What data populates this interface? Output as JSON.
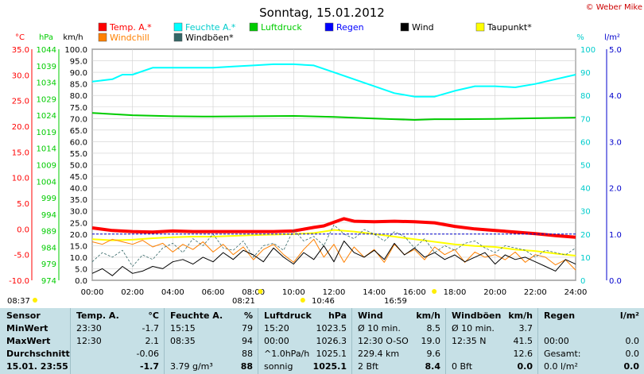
{
  "chart_data": {
    "type": "line",
    "title": "Sonntag, 15.01.2012",
    "copyright": "© Weber Mike",
    "legend": [
      {
        "name": "Temp. A.*",
        "color": "#ff0000"
      },
      {
        "name": "Feuchte A.*",
        "color": "#00ffff"
      },
      {
        "name": "Luftdruck",
        "color": "#00cc00"
      },
      {
        "name": "Regen",
        "color": "#0000ff"
      },
      {
        "name": "Wind",
        "color": "#000000"
      },
      {
        "name": "Taupunkt*",
        "color": "#ffff00"
      },
      {
        "name": "Windchill",
        "color": "#ff8000"
      },
      {
        "name": "Windböen*",
        "color": "#336666"
      }
    ],
    "axes": {
      "temp": {
        "unit": "°C",
        "ticks": [
          "35.0",
          "30.0",
          "25.0",
          "20.0",
          "15.0",
          "10.0",
          "5.0",
          "0.0",
          "-5.0",
          "-10.0"
        ],
        "range": [
          -10,
          35
        ],
        "color": "#ff0000"
      },
      "pressure": {
        "unit": "hPa",
        "ticks": [
          "1044",
          "1039",
          "1034",
          "1029",
          "1024",
          "1019",
          "1014",
          "1009",
          "1004",
          "999",
          "994",
          "989",
          "984",
          "979",
          "974"
        ],
        "range": [
          974,
          1044
        ],
        "color": "#00cc00"
      },
      "wind": {
        "unit": "km/h",
        "ticks": [
          "100.0",
          "95.0",
          "90.0",
          "85.0",
          "80.0",
          "75.0",
          "70.0",
          "65.0",
          "60.0",
          "55.0",
          "50.0",
          "45.0",
          "40.0",
          "35.0",
          "30.0",
          "25.0",
          "20.0",
          "15.0",
          "10.0",
          "5.0",
          "0.0"
        ],
        "range": [
          0,
          100
        ]
      },
      "humidity": {
        "unit": "%",
        "ticks": [
          "100",
          "90",
          "80",
          "70",
          "60",
          "50",
          "40",
          "30",
          "20",
          "10",
          "0"
        ],
        "range": [
          0,
          100
        ],
        "color": "#00cccc"
      },
      "rain": {
        "unit": "l/m²",
        "ticks": [
          "5.0",
          "4.0",
          "3.0",
          "2.0",
          "1.0",
          "0.0"
        ],
        "range": [
          0,
          5
        ],
        "color": "#0000cc"
      },
      "x": {
        "ticks": [
          "00:00",
          "02:00",
          "04:00",
          "06:00",
          "08:00",
          "10:00",
          "12:00",
          "14:00",
          "16:00",
          "18:00",
          "20:00",
          "22:00",
          "24:00"
        ],
        "range": [
          0,
          24
        ]
      }
    },
    "sun_events": [
      {
        "label": "08:37",
        "hour": 8.62
      },
      {
        "label": "08:21",
        "hour": 8.35
      },
      {
        "label": "10:46",
        "hour": 10.77
      },
      {
        "label": "16:59",
        "hour": 16.98
      }
    ],
    "series": [
      {
        "name": "Feuchte A.*",
        "axis": "humidity",
        "color": "#00ffff",
        "x": [
          0,
          1,
          1.5,
          2,
          3,
          4,
          5,
          6,
          7,
          8,
          9,
          10,
          11,
          12,
          13,
          14,
          15,
          16,
          17,
          18,
          19,
          20,
          21,
          22,
          23,
          24
        ],
        "values": [
          86,
          87,
          89,
          89,
          92,
          92,
          92,
          92,
          92.5,
          93,
          93.5,
          93.5,
          93,
          90,
          87,
          84,
          81,
          79.5,
          79.5,
          82,
          84,
          84,
          83.5,
          85,
          87,
          89
        ]
      },
      {
        "name": "Luftdruck",
        "axis": "pressure",
        "color": "#00cc00",
        "x": [
          0,
          2,
          4,
          6,
          8,
          10,
          12,
          14,
          15,
          16,
          17,
          18,
          20,
          22,
          24
        ],
        "values": [
          1024.7,
          1024.0,
          1023.7,
          1023.6,
          1023.7,
          1023.8,
          1023.5,
          1023.0,
          1022.8,
          1022.6,
          1022.8,
          1022.8,
          1022.9,
          1023.1,
          1023.3
        ]
      },
      {
        "name": "Temp. A.*",
        "axis": "temp",
        "color": "#ff0000",
        "x": [
          0,
          1,
          2,
          3,
          4,
          5,
          6,
          7,
          8,
          9,
          10,
          11,
          11.5,
          12,
          12.5,
          13,
          14,
          15,
          16,
          17,
          18,
          19,
          20,
          21,
          22,
          23,
          24
        ],
        "values": [
          0.2,
          -0.3,
          -0.5,
          -0.6,
          -0.4,
          -0.5,
          -0.5,
          -0.5,
          -0.5,
          -0.5,
          -0.4,
          0.3,
          0.6,
          1.3,
          2.0,
          1.5,
          1.4,
          1.5,
          1.4,
          1.2,
          0.5,
          0.0,
          -0.3,
          -0.6,
          -0.9,
          -1.3,
          -1.6
        ]
      },
      {
        "name": "Taupunkt*",
        "axis": "temp",
        "color": "#ffff00",
        "x": [
          0,
          1,
          2,
          3,
          4,
          5,
          6,
          8,
          10,
          11,
          12,
          13,
          14,
          15,
          16,
          17,
          18,
          19,
          20,
          21,
          22,
          23,
          24
        ],
        "values": [
          -2.0,
          -2.2,
          -2.1,
          -1.8,
          -1.6,
          -1.5,
          -1.5,
          -1.2,
          -1.0,
          -0.8,
          -0.2,
          -0.5,
          -1.0,
          -1.5,
          -2.0,
          -2.5,
          -3.0,
          -3.3,
          -3.5,
          -4.0,
          -4.3,
          -4.8,
          -5.2
        ]
      },
      {
        "name": "Windchill",
        "axis": "temp",
        "color": "#ff8000",
        "x": [
          0,
          0.5,
          1,
          1.5,
          2,
          2.5,
          3,
          3.5,
          4,
          4.5,
          5,
          5.5,
          6,
          6.5,
          7,
          7.5,
          8,
          8.5,
          9,
          9.5,
          10,
          10.5,
          11,
          11.5,
          12,
          12.5,
          13,
          13.5,
          14,
          14.5,
          15,
          15.5,
          16,
          16.5,
          17,
          17.5,
          18,
          18.5,
          19,
          19.5,
          20,
          20.5,
          21,
          21.5,
          22,
          22.5,
          23,
          23.5,
          24
        ],
        "values": [
          -2.5,
          -3.0,
          -2.0,
          -2.5,
          -3.0,
          -2.2,
          -3.5,
          -2.8,
          -4.5,
          -3.0,
          -4.0,
          -2.5,
          -4.5,
          -3.0,
          -5.0,
          -3.5,
          -6.0,
          -4.0,
          -3.0,
          -5.0,
          -6.5,
          -4.0,
          -2.0,
          -5.5,
          -3.0,
          -6.5,
          -3.5,
          -5.5,
          -4.0,
          -6.5,
          -3.0,
          -5.0,
          -4.0,
          -6.0,
          -3.5,
          -5.0,
          -4.0,
          -6.5,
          -4.5,
          -5.5,
          -5.0,
          -6.0,
          -4.5,
          -6.5,
          -5.0,
          -5.5,
          -7.0,
          -6.0,
          -8.0
        ]
      },
      {
        "name": "Windböen*",
        "axis": "wind",
        "color": "#336666",
        "dashed": true,
        "x": [
          0,
          0.5,
          1,
          1.5,
          2,
          2.5,
          3,
          3.5,
          4,
          4.5,
          5,
          5.5,
          6,
          6.5,
          7,
          7.5,
          8,
          8.5,
          9,
          9.5,
          10,
          10.5,
          11,
          11.5,
          12,
          12.5,
          13,
          13.5,
          14,
          14.5,
          15,
          15.5,
          16,
          16.5,
          17,
          17.5,
          18,
          18.5,
          19,
          19.5,
          20,
          20.5,
          21,
          21.5,
          22,
          22.5,
          23,
          23.5,
          24
        ],
        "values": [
          8,
          12,
          10,
          13,
          6,
          11,
          9,
          14,
          16,
          12,
          18,
          15,
          20,
          14,
          13,
          17,
          10,
          15,
          16,
          13,
          22,
          17,
          19,
          15,
          24,
          20,
          18,
          22,
          20,
          17,
          21,
          19,
          14,
          18,
          12,
          15,
          13,
          16,
          17,
          14,
          12,
          15,
          14,
          13,
          10,
          13,
          12,
          11,
          14
        ]
      },
      {
        "name": "Wind",
        "axis": "wind",
        "color": "#000000",
        "x": [
          0,
          0.5,
          1,
          1.5,
          2,
          2.5,
          3,
          3.5,
          4,
          4.5,
          5,
          5.5,
          6,
          6.5,
          7,
          7.5,
          8,
          8.5,
          9,
          9.5,
          10,
          10.5,
          11,
          11.5,
          12,
          12.5,
          13,
          13.5,
          14,
          14.5,
          15,
          15.5,
          16,
          16.5,
          17,
          17.5,
          18,
          18.5,
          19,
          19.5,
          20,
          20.5,
          21,
          21.5,
          22,
          22.5,
          23,
          23.5,
          24
        ],
        "values": [
          3,
          5,
          2,
          6,
          3,
          4,
          6,
          5,
          8,
          9,
          7,
          10,
          8,
          12,
          9,
          13,
          11,
          8,
          14,
          10,
          7,
          12,
          9,
          15,
          8,
          17,
          12,
          10,
          13,
          9,
          16,
          11,
          14,
          10,
          12,
          9,
          11,
          8,
          10,
          12,
          7,
          11,
          9,
          10,
          8,
          6,
          4,
          9,
          7
        ]
      },
      {
        "name": "Regen",
        "axis": "rain",
        "color": "#0000cc",
        "dashed": true,
        "x": [
          0,
          24
        ],
        "values": [
          1.0,
          1.0
        ]
      }
    ]
  },
  "table": {
    "columns": [
      {
        "header": "Sensor",
        "unit": ""
      },
      {
        "header": "Temp. A.",
        "unit": "°C"
      },
      {
        "header": "Feuchte A.",
        "unit": "%"
      },
      {
        "header": "Luftdruck",
        "unit": "hPa"
      },
      {
        "header": "Wind",
        "unit": "km/h"
      },
      {
        "header": "Windböen",
        "unit": "km/h"
      },
      {
        "header": "Regen",
        "unit": "l/m²"
      }
    ],
    "rows": [
      {
        "label": "MinWert",
        "cells": [
          [
            "23:30",
            "-1.7"
          ],
          [
            "15:15",
            "79"
          ],
          [
            "15:20",
            "1023.5"
          ],
          [
            "Ø 10 min.",
            "8.5"
          ],
          [
            "Ø 10 min.",
            "3.7"
          ],
          [
            "",
            ""
          ]
        ]
      },
      {
        "label": "MaxWert",
        "cells": [
          [
            "12:30",
            "2.1"
          ],
          [
            "08:35",
            "94"
          ],
          [
            "00:00",
            "1026.3"
          ],
          [
            "12:30   O-SO",
            "19.0"
          ],
          [
            "12:35   N",
            "41.5"
          ],
          [
            "00:00",
            "0.0"
          ]
        ]
      },
      {
        "label": "Durchschnitt",
        "cells": [
          [
            "",
            "-0.06"
          ],
          [
            "",
            "88"
          ],
          [
            "^1.0hPa/h",
            "1025.1"
          ],
          [
            "229.4 km",
            "9.6"
          ],
          [
            "",
            "12.6"
          ],
          [
            "Gesamt:",
            "0.0"
          ]
        ]
      },
      {
        "label": "15.01. 23:55",
        "cells": [
          [
            "",
            "-1.7"
          ],
          [
            "3.79 g/m³",
            "88"
          ],
          [
            "sonnig",
            "1025.1"
          ],
          [
            "2 Bft",
            "8.4"
          ],
          [
            "0 Bft",
            "0.0"
          ],
          [
            "0.0 l/m²",
            "0.0"
          ]
        ]
      }
    ]
  }
}
